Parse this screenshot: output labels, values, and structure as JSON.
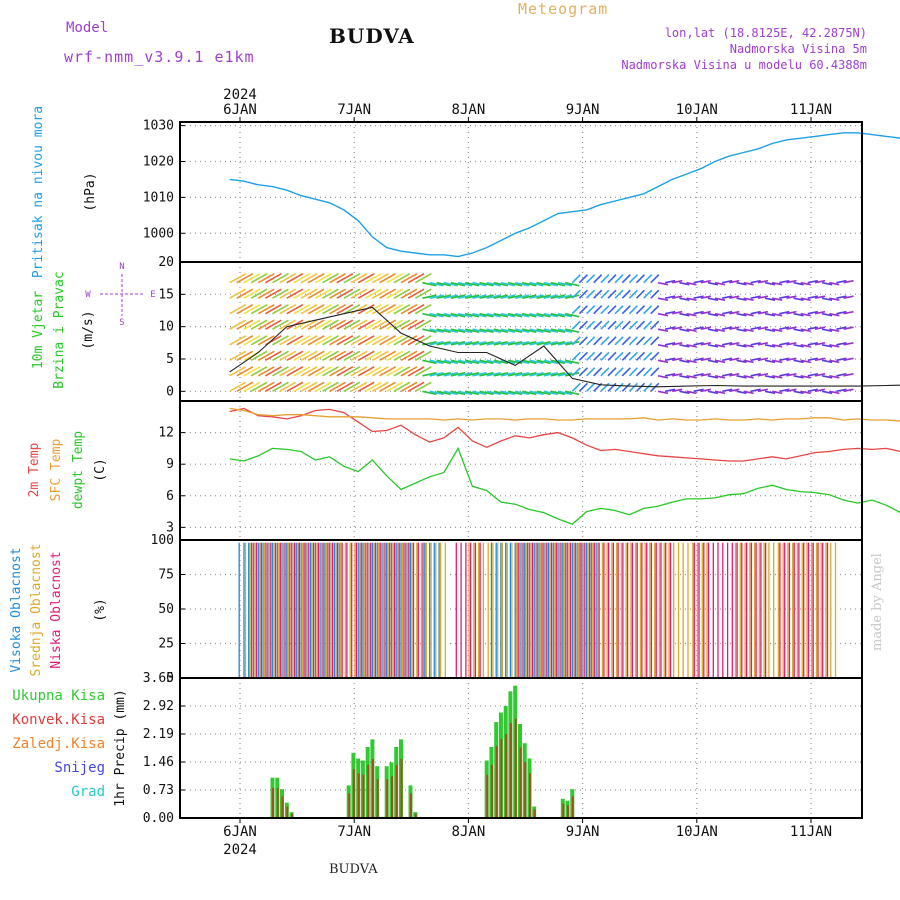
{
  "header": {
    "model_label": "Model",
    "model_name": "wrf-nmm_v3.9.1 e1km",
    "title": "BUDVA",
    "meteogram_label": "Meteogram",
    "lonlat": "lon,lat (18.8125E, 42.2875N)",
    "altitude": "Nadmorska Visina 5m",
    "model_altitude": "Nadmorska Visina u modelu 60.4388m",
    "footer_title": "BUDVA",
    "credit": "made by Angel"
  },
  "colors": {
    "pressure": "#1ea0e6",
    "temp2m": "#e64646",
    "sfc": "#e6a032",
    "dewpt": "#28c828",
    "high_cloud": "#1e8cdc",
    "mid_cloud": "#dcaa28",
    "low_cloud": "#dc1e78",
    "total_precip": "#32c832",
    "conv_precip": "#dc3c3c",
    "freezing": "#f08228",
    "snow": "#4646e6",
    "graupel": "#28c8c8",
    "purple_text": "#a040d0",
    "orange_text": "#e0b060"
  },
  "chart_data": [
    {
      "type": "line",
      "panel": "pressure",
      "ylabel": "Pritisak na nivou mora",
      "unit": "(hPa)",
      "ylim": [
        992,
        1031
      ],
      "yticks": [
        1000,
        1010,
        1020,
        1030
      ],
      "x_days": [
        "6JAN",
        "7JAN",
        "8JAN",
        "9JAN",
        "10JAN",
        "11JAN"
      ],
      "year": "2024",
      "x": [
        0,
        3,
        6,
        9,
        12,
        15,
        18,
        21,
        24,
        27,
        30,
        33,
        36,
        39,
        42,
        45,
        48,
        51,
        54,
        57,
        60,
        63,
        66,
        69,
        72,
        75,
        78,
        81,
        84,
        87,
        90,
        93,
        96,
        99,
        102,
        105,
        108,
        111,
        114,
        117,
        120,
        123,
        126,
        129,
        132,
        135,
        138,
        141,
        144,
        147
      ],
      "values": [
        1015,
        1014.5,
        1013.5,
        1013,
        1012,
        1010.5,
        1009.5,
        1008.5,
        1006.5,
        1003.5,
        999,
        996,
        995,
        994.5,
        994,
        994,
        993.5,
        994.5,
        996,
        998,
        1000,
        1001.5,
        1003.5,
        1005.5,
        1006,
        1006.5,
        1008,
        1009,
        1010,
        1011,
        1013,
        1015,
        1016.5,
        1018,
        1020,
        1021.5,
        1022.5,
        1023.5,
        1025,
        1026,
        1026.5,
        1027,
        1027.5,
        1028,
        1028,
        1027.5,
        1027,
        1026.5,
        1026.5,
        1025.5
      ]
    },
    {
      "type": "wind",
      "panel": "wind",
      "ylabel": "10m Vjetar",
      "ylabel2": "Brzina i Pravac",
      "unit": "(m/s)",
      "ylim": [
        -1.5,
        20
      ],
      "yticks": [
        0,
        5,
        10,
        15,
        20
      ],
      "compass": {
        "n": "N",
        "w": "W",
        "e": "E",
        "s": "S"
      },
      "x": [
        0,
        6,
        12,
        18,
        24,
        30,
        36,
        42,
        48,
        54,
        60,
        66,
        72,
        78,
        84,
        90,
        96,
        102,
        108,
        114,
        120,
        126,
        132,
        138,
        144,
        147
      ],
      "speed": [
        3,
        6,
        10,
        11,
        12,
        13,
        9,
        7,
        6,
        6,
        4,
        7,
        2,
        1,
        0.8,
        0.7,
        0.8,
        0.9,
        0.8,
        0.8,
        0.8,
        0.8,
        0.8,
        0.9,
        1.0,
        1.2
      ]
    },
    {
      "type": "line",
      "panel": "temperature",
      "labels": [
        "2m Temp",
        "SFC Temp",
        "dewpt Temp"
      ],
      "unit": "(C)",
      "ylim": [
        1.8,
        15
      ],
      "yticks": [
        3,
        6,
        9,
        12
      ],
      "x": [
        0,
        3,
        6,
        9,
        12,
        15,
        18,
        21,
        24,
        27,
        30,
        33,
        36,
        39,
        42,
        45,
        48,
        51,
        54,
        57,
        60,
        63,
        66,
        69,
        72,
        75,
        78,
        81,
        84,
        87,
        90,
        93,
        96,
        99,
        102,
        105,
        108,
        111,
        114,
        117,
        120,
        123,
        126,
        129,
        132,
        135,
        138,
        141,
        144,
        147
      ],
      "series": [
        {
          "name": "2m Temp",
          "values": [
            14,
            14.3,
            13.6,
            13.5,
            13.3,
            13.6,
            14.1,
            14.2,
            13.9,
            13,
            12.1,
            12.2,
            12.7,
            11.8,
            11.1,
            11.5,
            12.5,
            11.2,
            10.6,
            11.2,
            11.7,
            11.5,
            11.8,
            12,
            11.5,
            10.8,
            10.3,
            10.4,
            10.2,
            10,
            9.8,
            9.7,
            9.6,
            9.5,
            9.4,
            9.3,
            9.3,
            9.5,
            9.7,
            9.5,
            9.8,
            10.1,
            10.2,
            10.4,
            10.5,
            10.4,
            10.5,
            10.2,
            10.2,
            10.1
          ]
        },
        {
          "name": "SFC Temp",
          "values": [
            14.3,
            14.1,
            13.7,
            13.6,
            13.7,
            13.7,
            13.6,
            13.5,
            13.5,
            13.5,
            13.4,
            13.3,
            13.3,
            13.3,
            13.3,
            13.2,
            13.3,
            13.2,
            13.3,
            13.3,
            13.2,
            13.3,
            13.3,
            13.2,
            13.2,
            13.3,
            13.3,
            13.3,
            13.3,
            13.4,
            13.2,
            13.3,
            13.2,
            13.2,
            13.3,
            13.2,
            13.2,
            13.3,
            13.2,
            13.3,
            13.3,
            13.4,
            13.4,
            13.2,
            13.3,
            13.2,
            13.2,
            13.1,
            13.6,
            13.7
          ]
        },
        {
          "name": "dewpt Temp",
          "values": [
            9.5,
            9.3,
            9.8,
            10.5,
            10.4,
            10.2,
            9.4,
            9.7,
            8.8,
            8.3,
            9.4,
            7.9,
            6.6,
            7.2,
            7.8,
            8.2,
            10.5,
            6.9,
            6.5,
            5.4,
            5.2,
            4.7,
            4.4,
            3.8,
            3.3,
            4.5,
            4.8,
            4.6,
            4.2,
            4.8,
            5.0,
            5.4,
            5.7,
            5.7,
            5.8,
            6.1,
            6.2,
            6.7,
            7.0,
            6.6,
            6.4,
            6.3,
            6.1,
            5.6,
            5.3,
            5.6,
            5.1,
            4.4,
            4.3,
            4.0
          ]
        }
      ]
    },
    {
      "type": "bar",
      "panel": "cloud",
      "labels": [
        "Visoka Oblacnost",
        "Srednja Oblacnost",
        "Niska Oblacnost"
      ],
      "unit": "(%)",
      "ylim": [
        0,
        100
      ],
      "yticks": [
        0,
        25,
        50,
        75,
        100
      ],
      "segments": [
        {
          "name": "Visoka Oblacnost",
          "ranges": [
            [
              2,
              23
            ],
            [
              27,
              38
            ],
            [
              41,
              44
            ],
            [
              55,
              77
            ],
            [
              139,
              147
            ]
          ]
        },
        {
          "name": "Srednja Oblacnost",
          "ranges": [
            [
              3,
              45
            ],
            [
              50,
              53
            ],
            [
              54,
              100
            ],
            [
              106,
              127
            ]
          ]
        },
        {
          "name": "Niska Oblacnost",
          "ranges": [
            [
              4,
              14
            ],
            [
              14,
              40
            ],
            [
              47,
              52
            ],
            [
              60,
              92
            ],
            [
              97,
              112
            ],
            [
              115,
              125
            ]
          ]
        }
      ]
    },
    {
      "type": "bar",
      "panel": "precip",
      "labels": [
        "Ukupna Kisa",
        "Konvek.Kisa",
        "Zaledj.Kisa",
        "Snijeg",
        "Grad"
      ],
      "ylabel": "1hr Precip (mm)",
      "ylim": [
        0,
        3.65
      ],
      "yticks": [
        0,
        0.73,
        1.46,
        2.19,
        2.92,
        3.65
      ],
      "x": [
        9,
        10,
        11,
        12,
        13,
        25,
        26,
        27,
        28,
        29,
        30,
        31,
        33,
        34,
        35,
        36,
        38,
        39,
        54,
        55,
        56,
        57,
        58,
        59,
        60,
        61,
        62,
        63,
        64,
        70,
        71,
        72
      ],
      "values": [
        1.05,
        1.05,
        0.75,
        0.4,
        0.15,
        0.85,
        1.7,
        1.55,
        1.5,
        1.85,
        2.05,
        1.35,
        1.35,
        1.45,
        1.85,
        2.05,
        0.85,
        0.15,
        1.5,
        1.85,
        2.5,
        2.75,
        2.92,
        3.3,
        3.45,
        2.45,
        1.95,
        1.55,
        0.3,
        0.5,
        0.45,
        0.75
      ]
    }
  ]
}
